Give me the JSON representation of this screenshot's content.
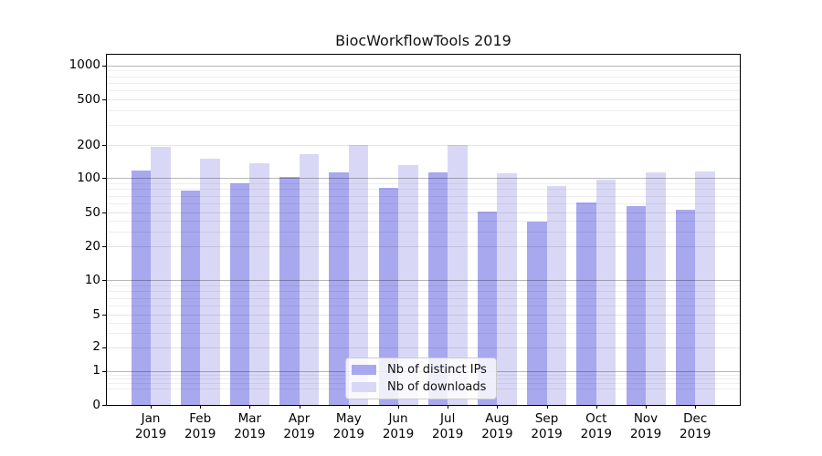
{
  "chart_data": {
    "type": "bar",
    "title": "BiocWorkflowTools 2019",
    "categories": [
      "Jan",
      "Feb",
      "Mar",
      "Apr",
      "May",
      "Jun",
      "Jul",
      "Aug",
      "Sep",
      "Oct",
      "Nov",
      "Dec"
    ],
    "category_year": "2019",
    "series": [
      {
        "name": "Nb of distinct IPs",
        "color": "#a8a8ef",
        "values": [
          116,
          77,
          89,
          102,
          112,
          82,
          113,
          51,
          39,
          61,
          57,
          53
        ]
      },
      {
        "name": "Nb of downloads",
        "color": "#d8d8f6",
        "values": [
          192,
          150,
          135,
          165,
          202,
          132,
          202,
          110,
          85,
          97,
          112,
          115
        ]
      }
    ],
    "yticks": [
      0,
      1,
      2,
      5,
      10,
      20,
      50,
      100,
      200,
      500,
      1000
    ],
    "ylabel": "",
    "xlabel": "",
    "yscale": "log-like",
    "ylim": [
      0,
      1200
    ],
    "grid": true,
    "legend_position": "lower center"
  }
}
